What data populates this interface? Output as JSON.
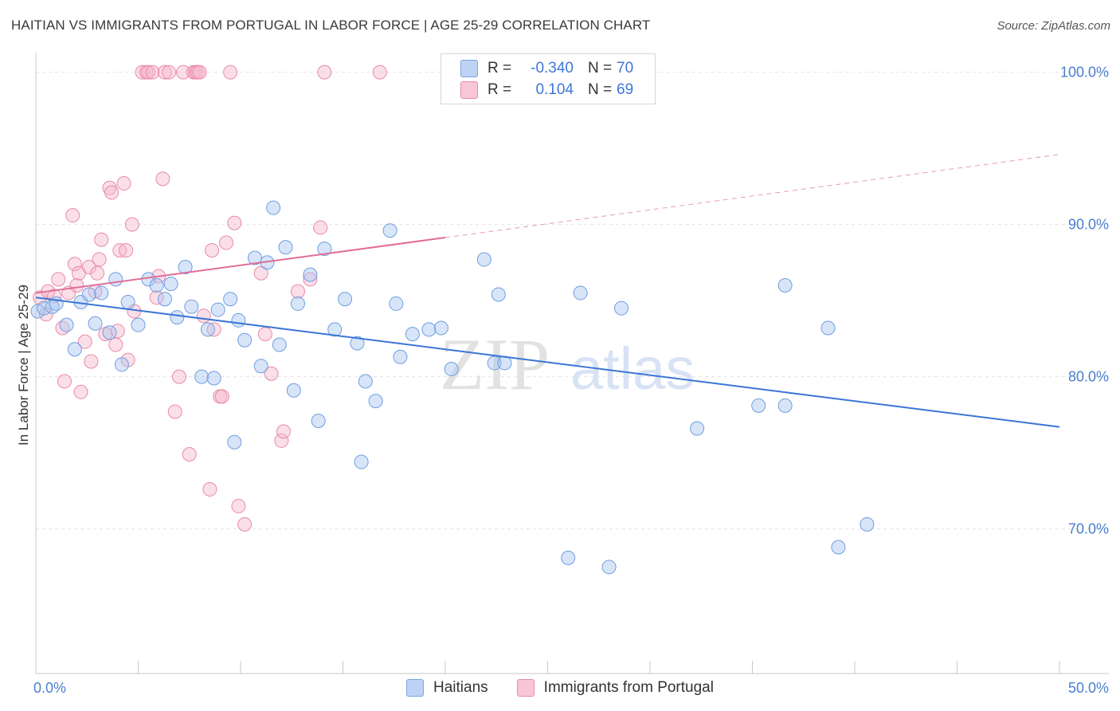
{
  "title": "HAITIAN VS IMMIGRANTS FROM PORTUGAL IN LABOR FORCE | AGE 25-29 CORRELATION CHART",
  "source": "Source: ZipAtlas.com",
  "watermark": {
    "zip": "ZIP",
    "atlas": "atlas"
  },
  "legend": {
    "rows": [
      {
        "r_label": "R =",
        "r_value": "-0.340",
        "n_label": "N =",
        "n_value": "70"
      },
      {
        "r_label": "R =",
        "r_value": "0.104",
        "n_label": "N =",
        "n_value": "69"
      }
    ]
  },
  "colors": {
    "blue_fill": "#a9c6f2",
    "blue_stroke": "#6f9ee0",
    "blue_line": "#3a76d6",
    "pink_fill": "#f7b8cc",
    "pink_stroke": "#e98aa8",
    "pink_line": "#e06d97",
    "axis_label": "#4a7fd0"
  },
  "chart_data": {
    "type": "scatter",
    "title": "HAITIAN VS IMMIGRANTS FROM PORTUGAL IN LABOR FORCE | AGE 25-29 CORRELATION CHART",
    "xlabel": "",
    "ylabel": "In Labor Force | Age 25-29",
    "xlim": [
      0,
      50
    ],
    "ylim": [
      60.5,
      101.5
    ],
    "x_tick_labels": [
      {
        "value": 0,
        "label": "0.0%"
      },
      {
        "value": 50,
        "label": "50.0%"
      }
    ],
    "y_tick_labels": [
      {
        "value": 100,
        "label": "100.0%"
      },
      {
        "value": 90,
        "label": "90.0%"
      },
      {
        "value": 80,
        "label": "80.0%"
      },
      {
        "value": 70,
        "label": "70.0%"
      }
    ],
    "grid": true,
    "legend_position": "bottom-center",
    "series": [
      {
        "name": "Haitians",
        "color": "#a9c6f2",
        "trend": {
          "x0": 0,
          "y0": 85.2,
          "x1": 50,
          "y1": 76.7,
          "dashed_from": null
        },
        "points": [
          [
            0.1,
            84.3
          ],
          [
            0.4,
            84.5
          ],
          [
            0.8,
            84.6
          ],
          [
            1.0,
            84.8
          ],
          [
            1.5,
            83.4
          ],
          [
            1.9,
            81.8
          ],
          [
            2.2,
            84.9
          ],
          [
            2.6,
            85.4
          ],
          [
            2.9,
            83.5
          ],
          [
            3.2,
            85.5
          ],
          [
            3.6,
            82.9
          ],
          [
            3.9,
            86.4
          ],
          [
            4.2,
            80.8
          ],
          [
            4.5,
            84.9
          ],
          [
            5.0,
            83.4
          ],
          [
            5.5,
            86.4
          ],
          [
            5.9,
            86.0
          ],
          [
            6.3,
            85.1
          ],
          [
            6.6,
            86.1
          ],
          [
            6.9,
            83.9
          ],
          [
            7.3,
            87.2
          ],
          [
            7.6,
            84.6
          ],
          [
            8.1,
            80.0
          ],
          [
            8.4,
            83.1
          ],
          [
            8.7,
            79.9
          ],
          [
            8.9,
            84.4
          ],
          [
            9.5,
            85.1
          ],
          [
            9.7,
            75.7
          ],
          [
            9.9,
            83.7
          ],
          [
            10.2,
            82.4
          ],
          [
            10.7,
            87.8
          ],
          [
            11.0,
            80.7
          ],
          [
            11.3,
            87.5
          ],
          [
            11.6,
            91.1
          ],
          [
            11.9,
            82.1
          ],
          [
            12.2,
            88.5
          ],
          [
            12.6,
            79.1
          ],
          [
            12.8,
            84.8
          ],
          [
            13.4,
            86.7
          ],
          [
            13.8,
            77.1
          ],
          [
            14.1,
            88.4
          ],
          [
            14.6,
            83.1
          ],
          [
            15.1,
            85.1
          ],
          [
            15.7,
            82.2
          ],
          [
            15.9,
            74.4
          ],
          [
            16.1,
            79.7
          ],
          [
            16.6,
            78.4
          ],
          [
            17.3,
            89.6
          ],
          [
            17.6,
            84.8
          ],
          [
            17.8,
            81.3
          ],
          [
            18.4,
            82.8
          ],
          [
            19.2,
            83.1
          ],
          [
            19.8,
            83.2
          ],
          [
            20.3,
            80.5
          ],
          [
            21.9,
            87.7
          ],
          [
            22.4,
            80.9
          ],
          [
            22.6,
            85.4
          ],
          [
            22.9,
            80.9
          ],
          [
            26.0,
            68.1
          ],
          [
            26.6,
            85.5
          ],
          [
            28.0,
            67.5
          ],
          [
            28.6,
            84.5
          ],
          [
            32.3,
            76.6
          ],
          [
            35.3,
            78.1
          ],
          [
            36.6,
            86.0
          ],
          [
            38.7,
            83.2
          ],
          [
            39.2,
            68.8
          ],
          [
            40.6,
            70.3
          ],
          [
            36.6,
            78.1
          ],
          [
            29.8,
            100.0
          ]
        ]
      },
      {
        "name": "Immigrants from Portugal",
        "color": "#f7b8cc",
        "trend": {
          "x0": 0,
          "y0": 85.5,
          "x1": 50,
          "y1": 94.6,
          "dashed_from": 20
        },
        "points": [
          [
            0.2,
            85.2
          ],
          [
            0.5,
            84.1
          ],
          [
            0.6,
            85.6
          ],
          [
            0.9,
            85.3
          ],
          [
            1.1,
            86.4
          ],
          [
            1.3,
            83.2
          ],
          [
            1.4,
            79.7
          ],
          [
            1.6,
            85.5
          ],
          [
            1.8,
            90.6
          ],
          [
            1.9,
            87.4
          ],
          [
            2.0,
            86.0
          ],
          [
            2.1,
            86.8
          ],
          [
            2.2,
            79.0
          ],
          [
            2.4,
            82.3
          ],
          [
            2.6,
            87.2
          ],
          [
            2.7,
            81.0
          ],
          [
            2.9,
            85.6
          ],
          [
            3.0,
            86.8
          ],
          [
            3.1,
            87.7
          ],
          [
            3.2,
            89.0
          ],
          [
            3.4,
            82.8
          ],
          [
            3.6,
            92.4
          ],
          [
            3.7,
            92.1
          ],
          [
            3.9,
            82.1
          ],
          [
            4.0,
            83.0
          ],
          [
            4.1,
            88.3
          ],
          [
            4.3,
            92.7
          ],
          [
            4.4,
            88.3
          ],
          [
            4.5,
            81.1
          ],
          [
            4.7,
            90.0
          ],
          [
            4.8,
            84.3
          ],
          [
            5.2,
            100.0
          ],
          [
            5.4,
            100.0
          ],
          [
            5.5,
            100.0
          ],
          [
            5.7,
            100.0
          ],
          [
            5.9,
            85.2
          ],
          [
            6.0,
            86.6
          ],
          [
            6.2,
            93.0
          ],
          [
            6.3,
            100.0
          ],
          [
            6.5,
            100.0
          ],
          [
            6.8,
            77.7
          ],
          [
            7.0,
            80.0
          ],
          [
            7.2,
            100.0
          ],
          [
            7.5,
            74.9
          ],
          [
            7.7,
            100.0
          ],
          [
            7.8,
            100.0
          ],
          [
            7.9,
            100.0
          ],
          [
            8.0,
            100.0
          ],
          [
            8.2,
            84.0
          ],
          [
            8.5,
            72.6
          ],
          [
            8.6,
            88.3
          ],
          [
            8.7,
            83.1
          ],
          [
            9.0,
            78.7
          ],
          [
            9.1,
            78.7
          ],
          [
            9.3,
            88.8
          ],
          [
            9.5,
            100.0
          ],
          [
            9.7,
            90.1
          ],
          [
            9.9,
            71.5
          ],
          [
            10.2,
            70.3
          ],
          [
            11.0,
            86.8
          ],
          [
            11.2,
            82.8
          ],
          [
            11.5,
            80.2
          ],
          [
            12.0,
            75.8
          ],
          [
            12.1,
            76.4
          ],
          [
            12.8,
            85.6
          ],
          [
            13.4,
            86.4
          ],
          [
            13.9,
            89.8
          ],
          [
            14.1,
            100.0
          ],
          [
            16.8,
            100.0
          ]
        ]
      }
    ]
  }
}
